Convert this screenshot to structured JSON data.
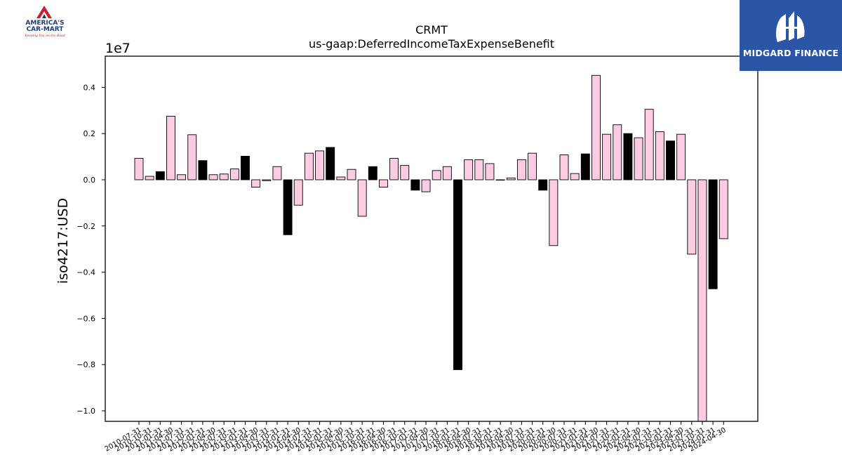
{
  "logos": {
    "left": {
      "line1": "AMERICA'S",
      "line2": "CAR-MART",
      "tagline": "Keeping You on the Road"
    },
    "right": {
      "text": "MIDGARD FINANCE"
    }
  },
  "chart_data": {
    "type": "bar",
    "title": "CRMT",
    "subtitle": "us-gaap:DeferredIncomeTaxExpenseBenefit",
    "ylabel": "iso4217:USD",
    "xlabel": "",
    "offset_label": "1e7",
    "ylim": [
      -1.05,
      0.53
    ],
    "yticks": [
      0.4,
      0.2,
      0.0,
      -0.2,
      -0.4,
      -0.6,
      -0.8,
      -1.0
    ],
    "ytick_labels": [
      "0.4",
      "0.2",
      "0.0",
      "−0.2",
      "−0.4",
      "−0.6",
      "−0.8",
      "−1.0"
    ],
    "grid": false,
    "colors": {
      "quarter": "#fbcce1",
      "annual": "#000000",
      "edge": "#000000"
    },
    "tick_labels": [
      "2010-07-31",
      "2010-10-31",
      "2011-01-31",
      "2011-04-30",
      "2011-07-31",
      "2011-10-31",
      "2012-01-31",
      "2012-04-30",
      "2012-07-31",
      "2012-10-31",
      "2013-01-31",
      "2013-04-30",
      "2013-07-31",
      "2013-10-31",
      "2014-01-31",
      "2014-04-30",
      "2014-07-31",
      "2014-10-31",
      "2015-01-31",
      "2015-04-30",
      "2015-07-31",
      "2015-10-31",
      "2016-01-31",
      "2016-04-30",
      "2016-07-31",
      "2016-10-31",
      "2017-01-31",
      "2017-04-30",
      "2017-07-31",
      "2017-10-31",
      "2018-01-31",
      "2018-04-30",
      "2018-07-31",
      "2018-10-31",
      "2019-01-31",
      "2019-04-30",
      "2019-07-31",
      "2019-10-31",
      "2020-01-31",
      "2020-04-30",
      "2020-07-31",
      "2020-10-31",
      "2021-01-31",
      "2021-04-30",
      "2021-07-31",
      "2021-10-31",
      "2022-01-31",
      "2022-04-30",
      "2022-07-31",
      "2022-10-31",
      "2023-01-31",
      "2023-04-30",
      "2023-07-31",
      "2023-10-31",
      "2024-01-31",
      "2024-04-30"
    ],
    "values": [
      0.093,
      0.015,
      0.035,
      0.275,
      0.022,
      0.195,
      0.083,
      0.022,
      0.025,
      0.047,
      0.102,
      -0.032,
      -0.004,
      0.057,
      -0.238,
      -0.11,
      0.115,
      0.125,
      0.14,
      0.012,
      0.045,
      -0.158,
      0.057,
      -0.032,
      0.093,
      0.062,
      -0.045,
      -0.052,
      0.04,
      0.057,
      -0.822,
      0.087,
      0.087,
      0.07,
      0.0,
      0.008,
      0.087,
      0.115,
      -0.045,
      -0.285,
      0.108,
      0.027,
      0.112,
      0.452,
      0.197,
      0.238,
      0.2,
      0.182,
      0.305,
      0.208,
      0.168,
      0.197,
      -0.322,
      -1.05,
      -0.472,
      -0.255
    ],
    "annual": [
      false,
      false,
      true,
      false,
      false,
      false,
      true,
      false,
      false,
      false,
      true,
      false,
      false,
      false,
      true,
      false,
      false,
      false,
      true,
      false,
      false,
      false,
      true,
      false,
      false,
      false,
      true,
      false,
      false,
      false,
      true,
      false,
      false,
      false,
      true,
      false,
      false,
      false,
      true,
      false,
      false,
      false,
      true,
      false,
      false,
      false,
      true,
      false,
      false,
      false,
      true,
      false,
      false,
      false,
      true,
      false
    ]
  }
}
